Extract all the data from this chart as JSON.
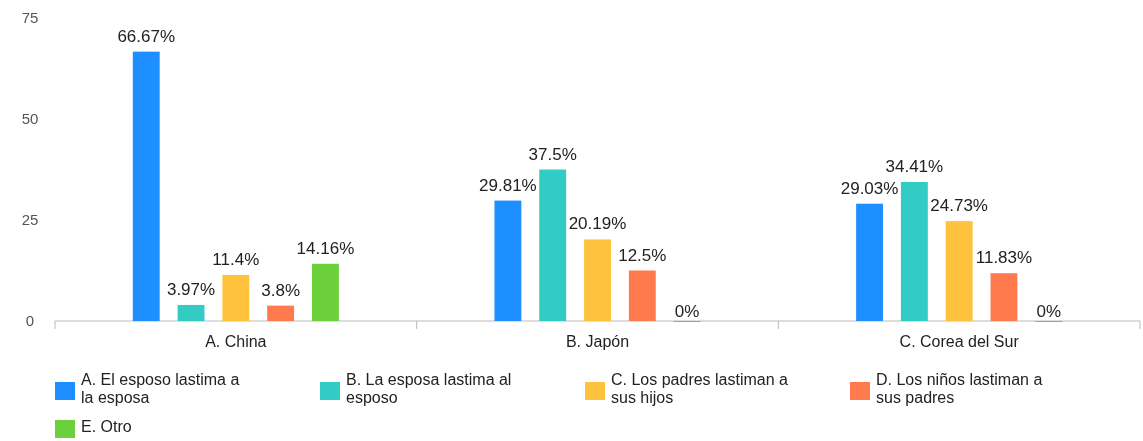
{
  "chart_data": {
    "type": "bar",
    "categories": [
      "A. China",
      "B. Japón",
      "C. Corea del Sur"
    ],
    "series": [
      {
        "name": "A. El esposo lastima a la esposa",
        "color": "#1e8fff",
        "values": [
          66.67,
          29.81,
          29.03
        ],
        "value_labels": [
          "66.67%",
          "29.81%",
          "29.03%"
        ]
      },
      {
        "name": "B. La esposa lastima al esposo",
        "color": "#33ccc4",
        "values": [
          3.97,
          37.5,
          34.41
        ],
        "value_labels": [
          "3.97%",
          "37.5%",
          "34.41%"
        ]
      },
      {
        "name": "C. Los padres lastiman a sus hijos",
        "color": "#ffc23d",
        "values": [
          11.4,
          20.19,
          24.73
        ],
        "value_labels": [
          "11.4%",
          "20.19%",
          "24.73%"
        ]
      },
      {
        "name": "D. Los niños lastiman a sus padres",
        "color": "#ff7a4d",
        "values": [
          3.8,
          12.5,
          11.83
        ],
        "value_labels": [
          "3.8%",
          "12.5%",
          "11.83%"
        ]
      },
      {
        "name": "E. Otro",
        "color": "#6ccf3c",
        "values": [
          14.16,
          0,
          0
        ],
        "value_labels": [
          "14.16%",
          "0%",
          "0%"
        ]
      }
    ],
    "ylim": [
      0,
      75
    ],
    "yticks": [
      0,
      25,
      50,
      75
    ],
    "grid": false,
    "legend": "bottom"
  }
}
